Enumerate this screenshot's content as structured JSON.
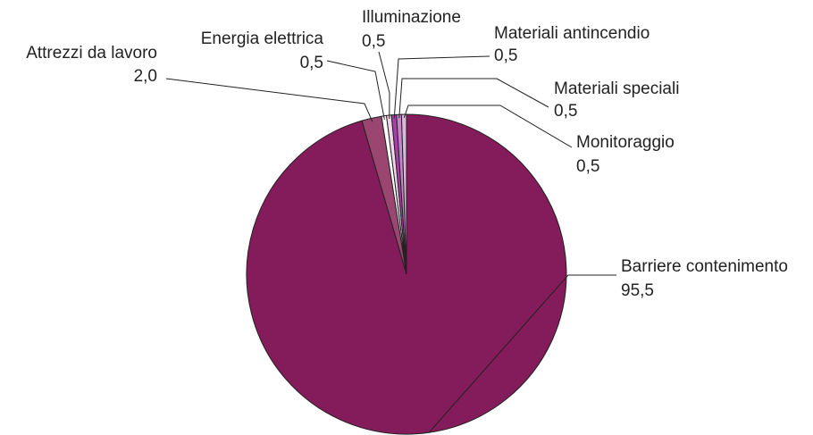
{
  "chart_data": {
    "type": "pie",
    "categories": [
      "Barriere contenimento",
      "Attrezzi da lavoro",
      "Energia elettrica",
      "Illuminazione",
      "Materiali antincendio",
      "Materiali speciali",
      "Monitoraggio"
    ],
    "values": [
      95.5,
      2.0,
      0.5,
      0.5,
      0.5,
      0.5,
      0.5
    ],
    "value_labels": [
      "95,5",
      "2,0",
      "0,5",
      "0,5",
      "0,5",
      "0,5",
      "0,5"
    ],
    "colors": [
      "#841b5a",
      "#9a4670",
      "#ffffff",
      "#f0d8e8",
      "#a63fa8",
      "#c585c8",
      "#dcb6dc"
    ]
  }
}
